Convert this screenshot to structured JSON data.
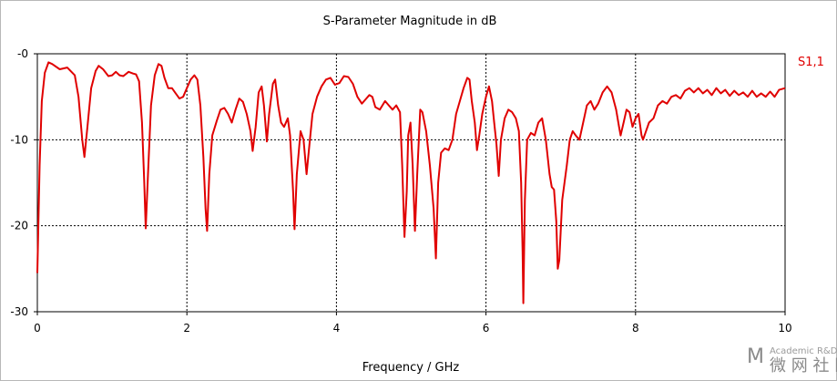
{
  "watermark": {
    "line1": "Academic R&D",
    "line2": "微 网 社 区"
  },
  "chart_data": {
    "type": "line",
    "title": "S-Parameter Magnitude in dB",
    "xlabel": "Frequency / GHz",
    "ylabel": "",
    "xlim": [
      0,
      10
    ],
    "ylim": [
      -30,
      0
    ],
    "grid": true,
    "legend_position": "top-right",
    "x_ticks": [
      "0",
      "2",
      "4",
      "6",
      "8",
      "10"
    ],
    "y_ticks": [
      "-0",
      "-10",
      "-20",
      "-30"
    ],
    "series": [
      {
        "name": "S1,1",
        "color": "#e00000",
        "points": [
          [
            0.0,
            -25.5
          ],
          [
            0.03,
            -13.0
          ],
          [
            0.06,
            -5.5
          ],
          [
            0.1,
            -2.2
          ],
          [
            0.15,
            -1.0
          ],
          [
            0.2,
            -1.2
          ],
          [
            0.3,
            -1.8
          ],
          [
            0.4,
            -1.6
          ],
          [
            0.5,
            -2.5
          ],
          [
            0.55,
            -5.0
          ],
          [
            0.6,
            -10.0
          ],
          [
            0.63,
            -12.0
          ],
          [
            0.67,
            -8.5
          ],
          [
            0.72,
            -4.0
          ],
          [
            0.78,
            -2.0
          ],
          [
            0.82,
            -1.4
          ],
          [
            0.88,
            -1.8
          ],
          [
            0.95,
            -2.6
          ],
          [
            1.0,
            -2.5
          ],
          [
            1.05,
            -2.1
          ],
          [
            1.1,
            -2.5
          ],
          [
            1.15,
            -2.6
          ],
          [
            1.22,
            -2.1
          ],
          [
            1.28,
            -2.3
          ],
          [
            1.32,
            -2.4
          ],
          [
            1.36,
            -3.2
          ],
          [
            1.4,
            -8.0
          ],
          [
            1.43,
            -15.0
          ],
          [
            1.45,
            -20.3
          ],
          [
            1.48,
            -14.0
          ],
          [
            1.52,
            -6.0
          ],
          [
            1.57,
            -2.5
          ],
          [
            1.62,
            -1.2
          ],
          [
            1.66,
            -1.4
          ],
          [
            1.7,
            -2.8
          ],
          [
            1.75,
            -4.0
          ],
          [
            1.8,
            -4.0
          ],
          [
            1.85,
            -4.6
          ],
          [
            1.9,
            -5.2
          ],
          [
            1.95,
            -5.0
          ],
          [
            2.0,
            -4.0
          ],
          [
            2.05,
            -3.0
          ],
          [
            2.1,
            -2.5
          ],
          [
            2.14,
            -3.0
          ],
          [
            2.18,
            -6.0
          ],
          [
            2.22,
            -12.0
          ],
          [
            2.25,
            -18.0
          ],
          [
            2.27,
            -20.6
          ],
          [
            2.3,
            -14.0
          ],
          [
            2.34,
            -9.5
          ],
          [
            2.4,
            -7.8
          ],
          [
            2.45,
            -6.5
          ],
          [
            2.5,
            -6.3
          ],
          [
            2.55,
            -7.0
          ],
          [
            2.6,
            -8.0
          ],
          [
            2.65,
            -6.5
          ],
          [
            2.7,
            -5.2
          ],
          [
            2.75,
            -5.6
          ],
          [
            2.8,
            -7.0
          ],
          [
            2.85,
            -9.0
          ],
          [
            2.88,
            -11.3
          ],
          [
            2.92,
            -8.5
          ],
          [
            2.96,
            -4.5
          ],
          [
            3.0,
            -3.8
          ],
          [
            3.03,
            -6.0
          ],
          [
            3.07,
            -10.2
          ],
          [
            3.1,
            -7.0
          ],
          [
            3.15,
            -3.5
          ],
          [
            3.18,
            -3.0
          ],
          [
            3.22,
            -6.0
          ],
          [
            3.26,
            -8.0
          ],
          [
            3.3,
            -8.5
          ],
          [
            3.35,
            -7.5
          ],
          [
            3.38,
            -9.5
          ],
          [
            3.42,
            -16.0
          ],
          [
            3.44,
            -20.4
          ],
          [
            3.47,
            -14.0
          ],
          [
            3.52,
            -9.0
          ],
          [
            3.56,
            -10.0
          ],
          [
            3.6,
            -14.0
          ],
          [
            3.64,
            -10.5
          ],
          [
            3.68,
            -7.0
          ],
          [
            3.74,
            -5.0
          ],
          [
            3.8,
            -3.8
          ],
          [
            3.86,
            -3.0
          ],
          [
            3.92,
            -2.8
          ],
          [
            3.98,
            -3.6
          ],
          [
            4.04,
            -3.4
          ],
          [
            4.1,
            -2.6
          ],
          [
            4.16,
            -2.7
          ],
          [
            4.22,
            -3.5
          ],
          [
            4.28,
            -5.0
          ],
          [
            4.34,
            -5.8
          ],
          [
            4.4,
            -5.2
          ],
          [
            4.44,
            -4.8
          ],
          [
            4.48,
            -5.0
          ],
          [
            4.52,
            -6.2
          ],
          [
            4.58,
            -6.5
          ],
          [
            4.65,
            -5.5
          ],
          [
            4.7,
            -6.0
          ],
          [
            4.75,
            -6.5
          ],
          [
            4.8,
            -6.0
          ],
          [
            4.85,
            -6.8
          ],
          [
            4.88,
            -13.0
          ],
          [
            4.91,
            -21.3
          ],
          [
            4.94,
            -16.0
          ],
          [
            4.96,
            -9.5
          ],
          [
            4.99,
            -8.0
          ],
          [
            5.02,
            -13.0
          ],
          [
            5.05,
            -20.6
          ],
          [
            5.08,
            -14.0
          ],
          [
            5.12,
            -6.5
          ],
          [
            5.15,
            -6.8
          ],
          [
            5.2,
            -9.0
          ],
          [
            5.25,
            -13.0
          ],
          [
            5.3,
            -18.0
          ],
          [
            5.33,
            -23.8
          ],
          [
            5.36,
            -15.0
          ],
          [
            5.4,
            -11.5
          ],
          [
            5.45,
            -11.0
          ],
          [
            5.5,
            -11.2
          ],
          [
            5.55,
            -10.0
          ],
          [
            5.6,
            -7.0
          ],
          [
            5.65,
            -5.5
          ],
          [
            5.7,
            -4.0
          ],
          [
            5.75,
            -2.8
          ],
          [
            5.78,
            -3.0
          ],
          [
            5.81,
            -5.5
          ],
          [
            5.85,
            -8.0
          ],
          [
            5.88,
            -11.2
          ],
          [
            5.91,
            -9.5
          ],
          [
            5.95,
            -7.0
          ],
          [
            6.0,
            -5.0
          ],
          [
            6.04,
            -3.8
          ],
          [
            6.08,
            -5.5
          ],
          [
            6.11,
            -8.0
          ],
          [
            6.14,
            -10.5
          ],
          [
            6.17,
            -14.2
          ],
          [
            6.2,
            -10.0
          ],
          [
            6.25,
            -7.5
          ],
          [
            6.3,
            -6.5
          ],
          [
            6.35,
            -6.8
          ],
          [
            6.4,
            -7.5
          ],
          [
            6.44,
            -9.0
          ],
          [
            6.47,
            -15.0
          ],
          [
            6.49,
            -23.0
          ],
          [
            6.5,
            -29.0
          ],
          [
            6.52,
            -17.0
          ],
          [
            6.55,
            -10.0
          ],
          [
            6.6,
            -9.2
          ],
          [
            6.65,
            -9.5
          ],
          [
            6.7,
            -8.0
          ],
          [
            6.75,
            -7.5
          ],
          [
            6.8,
            -10.0
          ],
          [
            6.85,
            -14.0
          ],
          [
            6.88,
            -15.5
          ],
          [
            6.91,
            -15.8
          ],
          [
            6.94,
            -19.5
          ],
          [
            6.96,
            -25.0
          ],
          [
            6.98,
            -24.0
          ],
          [
            7.02,
            -17.0
          ],
          [
            7.08,
            -13.0
          ],
          [
            7.12,
            -10.0
          ],
          [
            7.16,
            -9.0
          ],
          [
            7.2,
            -9.5
          ],
          [
            7.25,
            -10.0
          ],
          [
            7.3,
            -8.0
          ],
          [
            7.35,
            -6.0
          ],
          [
            7.4,
            -5.5
          ],
          [
            7.45,
            -6.5
          ],
          [
            7.5,
            -5.8
          ],
          [
            7.56,
            -4.5
          ],
          [
            7.62,
            -3.8
          ],
          [
            7.68,
            -4.5
          ],
          [
            7.74,
            -6.5
          ],
          [
            7.78,
            -8.5
          ],
          [
            7.8,
            -9.5
          ],
          [
            7.84,
            -8.0
          ],
          [
            7.88,
            -6.5
          ],
          [
            7.92,
            -6.8
          ],
          [
            7.96,
            -8.5
          ],
          [
            8.0,
            -7.5
          ],
          [
            8.04,
            -7.0
          ],
          [
            8.08,
            -9.5
          ],
          [
            8.1,
            -10.0
          ],
          [
            8.14,
            -9.0
          ],
          [
            8.18,
            -8.0
          ],
          [
            8.24,
            -7.5
          ],
          [
            8.3,
            -6.0
          ],
          [
            8.36,
            -5.5
          ],
          [
            8.42,
            -5.8
          ],
          [
            8.48,
            -5.0
          ],
          [
            8.54,
            -4.8
          ],
          [
            8.6,
            -5.2
          ],
          [
            8.66,
            -4.3
          ],
          [
            8.72,
            -4.0
          ],
          [
            8.78,
            -4.5
          ],
          [
            8.84,
            -4.0
          ],
          [
            8.9,
            -4.6
          ],
          [
            8.96,
            -4.2
          ],
          [
            9.02,
            -4.8
          ],
          [
            9.08,
            -4.0
          ],
          [
            9.14,
            -4.6
          ],
          [
            9.2,
            -4.2
          ],
          [
            9.26,
            -4.9
          ],
          [
            9.32,
            -4.3
          ],
          [
            9.38,
            -4.8
          ],
          [
            9.44,
            -4.5
          ],
          [
            9.5,
            -5.0
          ],
          [
            9.56,
            -4.3
          ],
          [
            9.62,
            -5.0
          ],
          [
            9.68,
            -4.6
          ],
          [
            9.74,
            -5.0
          ],
          [
            9.8,
            -4.4
          ],
          [
            9.86,
            -5.0
          ],
          [
            9.92,
            -4.2
          ],
          [
            10.0,
            -4.0
          ]
        ]
      }
    ]
  }
}
